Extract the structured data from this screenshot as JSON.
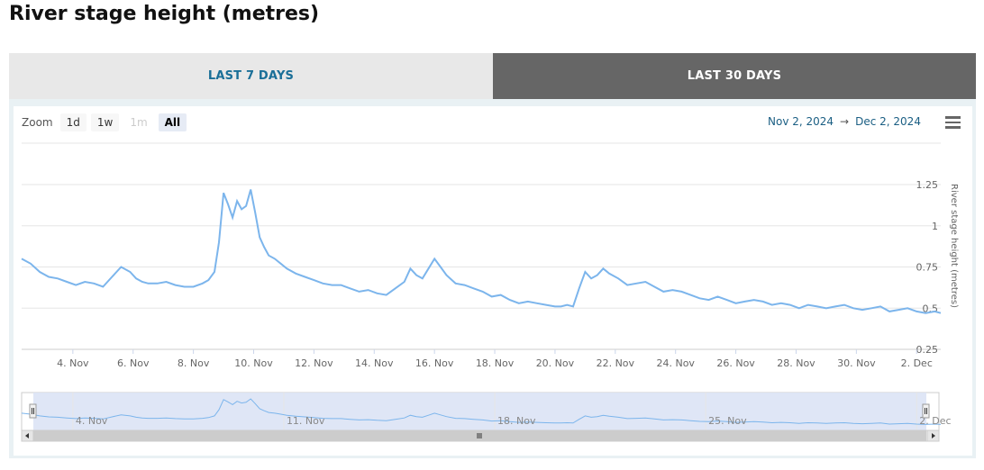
{
  "page_title": "River stage height (metres)",
  "tabs": [
    {
      "label": "LAST 7 DAYS",
      "active": false
    },
    {
      "label": "LAST 30 DAYS",
      "active": true
    }
  ],
  "zoom": {
    "label": "Zoom",
    "buttons": [
      {
        "label": "1d",
        "state": "normal"
      },
      {
        "label": "1w",
        "state": "normal"
      },
      {
        "label": "1m",
        "state": "disabled"
      },
      {
        "label": "All",
        "state": "active"
      }
    ]
  },
  "date_range": {
    "from": "Nov 2, 2024",
    "arrow": "→",
    "to": "Dec 2, 2024"
  },
  "colors": {
    "line": "#7cb5ec",
    "navigator_fill": "#dce3f5",
    "tab_active_bg": "#666666",
    "tab_inactive_text": "#1a6f98"
  },
  "chart_data": {
    "type": "line",
    "title": "",
    "xlabel": "",
    "ylabel": "River stage height (metres)",
    "ylim": [
      0.25,
      1.25
    ],
    "y_ticks": [
      0.25,
      0.5,
      0.75,
      1,
      1.25
    ],
    "y_tick_labels": [
      "0.25",
      "0.5",
      "0.75",
      "1",
      "1.25"
    ],
    "xlim": [
      2.3,
      32.8
    ],
    "x_ticks": [
      {
        "day": 4,
        "label": "4. Nov"
      },
      {
        "day": 6,
        "label": "6. Nov"
      },
      {
        "day": 8,
        "label": "8. Nov"
      },
      {
        "day": 10,
        "label": "10. Nov"
      },
      {
        "day": 12,
        "label": "12. Nov"
      },
      {
        "day": 14,
        "label": "14. Nov"
      },
      {
        "day": 16,
        "label": "16. Nov"
      },
      {
        "day": 18,
        "label": "18. Nov"
      },
      {
        "day": 20,
        "label": "20. Nov"
      },
      {
        "day": 22,
        "label": "22. Nov"
      },
      {
        "day": 24,
        "label": "24. Nov"
      },
      {
        "day": 26,
        "label": "26. Nov"
      },
      {
        "day": 28,
        "label": "28. Nov"
      },
      {
        "day": 30,
        "label": "30. Nov"
      },
      {
        "day": 32,
        "label": "2. Dec"
      }
    ],
    "navigator_ticks": [
      {
        "day": 4,
        "label": "4. Nov"
      },
      {
        "day": 11,
        "label": "11. Nov"
      },
      {
        "day": 18,
        "label": "18. Nov"
      },
      {
        "day": 25,
        "label": "25. Nov"
      },
      {
        "day": 32,
        "label": "2. Dec"
      }
    ],
    "series": [
      {
        "x": [
          2.3,
          2.6,
          2.9,
          3.2,
          3.5,
          3.8,
          4.1,
          4.4,
          4.7,
          5.0,
          5.3,
          5.6,
          5.9,
          6.1,
          6.3,
          6.5,
          6.8,
          7.1,
          7.4,
          7.7,
          8.0,
          8.3,
          8.5,
          8.7,
          8.85,
          9.0,
          9.15,
          9.3,
          9.45,
          9.6,
          9.75,
          9.9,
          10.05,
          10.2,
          10.35,
          10.5,
          10.7,
          10.9,
          11.1,
          11.4,
          11.7,
          12.0,
          12.3,
          12.6,
          12.9,
          13.2,
          13.5,
          13.8,
          14.1,
          14.4,
          14.7,
          15.0,
          15.2,
          15.4,
          15.6,
          15.8,
          16.0,
          16.2,
          16.4,
          16.7,
          17.0,
          17.3,
          17.6,
          17.9,
          18.2,
          18.5,
          18.8,
          19.1,
          19.4,
          19.7,
          20.0,
          20.2,
          20.4,
          20.6,
          20.8,
          21.0,
          21.2,
          21.4,
          21.6,
          21.8,
          22.1,
          22.4,
          22.7,
          23.0,
          23.3,
          23.6,
          23.9,
          24.2,
          24.5,
          24.8,
          25.1,
          25.4,
          25.7,
          26.0,
          26.3,
          26.6,
          26.9,
          27.2,
          27.5,
          27.8,
          28.1,
          28.4,
          28.7,
          29.0,
          29.3,
          29.6,
          29.9,
          30.2,
          30.5,
          30.8,
          31.1,
          31.4,
          31.7,
          32.0,
          32.3,
          32.6,
          32.8
        ],
        "y": [
          0.8,
          0.77,
          0.72,
          0.69,
          0.68,
          0.66,
          0.64,
          0.66,
          0.65,
          0.63,
          0.69,
          0.75,
          0.72,
          0.68,
          0.66,
          0.65,
          0.65,
          0.66,
          0.64,
          0.63,
          0.63,
          0.65,
          0.67,
          0.72,
          0.9,
          1.2,
          1.13,
          1.05,
          1.15,
          1.1,
          1.12,
          1.22,
          1.08,
          0.93,
          0.87,
          0.82,
          0.8,
          0.77,
          0.74,
          0.71,
          0.69,
          0.67,
          0.65,
          0.64,
          0.64,
          0.62,
          0.6,
          0.61,
          0.59,
          0.58,
          0.62,
          0.66,
          0.74,
          0.7,
          0.68,
          0.74,
          0.8,
          0.75,
          0.7,
          0.65,
          0.64,
          0.62,
          0.6,
          0.57,
          0.58,
          0.55,
          0.53,
          0.54,
          0.53,
          0.52,
          0.51,
          0.51,
          0.52,
          0.51,
          0.62,
          0.72,
          0.68,
          0.7,
          0.74,
          0.71,
          0.68,
          0.64,
          0.65,
          0.66,
          0.63,
          0.6,
          0.61,
          0.6,
          0.58,
          0.56,
          0.55,
          0.57,
          0.55,
          0.53,
          0.54,
          0.55,
          0.54,
          0.52,
          0.53,
          0.52,
          0.5,
          0.52,
          0.51,
          0.5,
          0.51,
          0.52,
          0.5,
          0.49,
          0.5,
          0.51,
          0.48,
          0.49,
          0.5,
          0.48,
          0.47,
          0.48,
          0.47
        ]
      }
    ],
    "grid": true,
    "legend": "none"
  }
}
